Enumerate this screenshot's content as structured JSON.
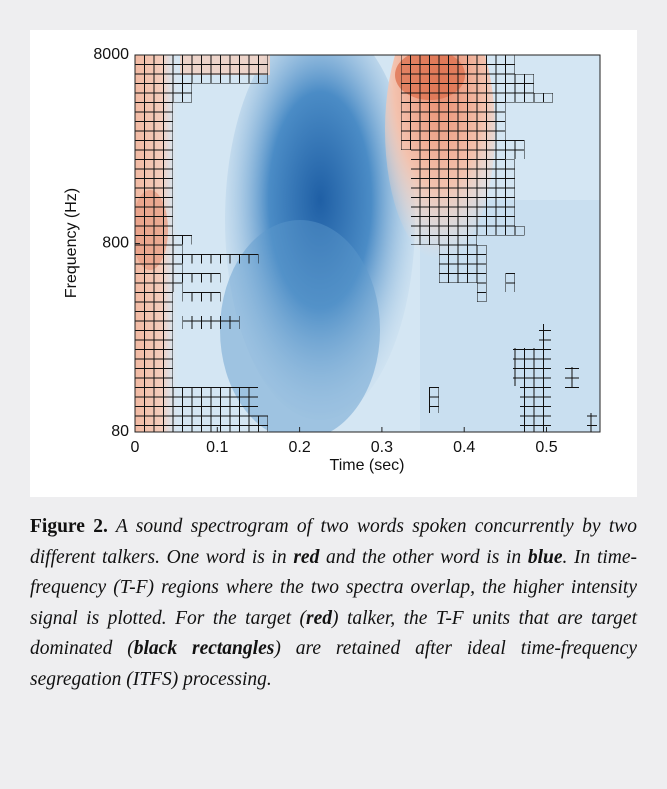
{
  "chart_data": {
    "type": "spectrogram",
    "xlabel": "Time (sec)",
    "ylabel": "Frequency (Hz)",
    "xlim": [
      0,
      0.565
    ],
    "xticks": [
      0,
      0.1,
      0.2,
      0.3,
      0.4,
      0.5
    ],
    "ylim": [
      80,
      8000
    ],
    "yticks": [
      80,
      800,
      8000
    ],
    "yscale": "log"
  },
  "caption": {
    "label": "Figure 2.",
    "parts": [
      " A sound spectrogram of two words spoken concurrently by two different talkers. One word is in ",
      "red",
      " and the other word is in ",
      "blue",
      ". In time-frequency (T-F) regions where the two spectra overlap, the higher intensity signal is plotted. For the target (",
      "red",
      ") talker, the T-F units that are target dominated (",
      "black rectangles",
      ") are retained after ideal time-frequency segregation (ITFS) processing."
    ]
  }
}
